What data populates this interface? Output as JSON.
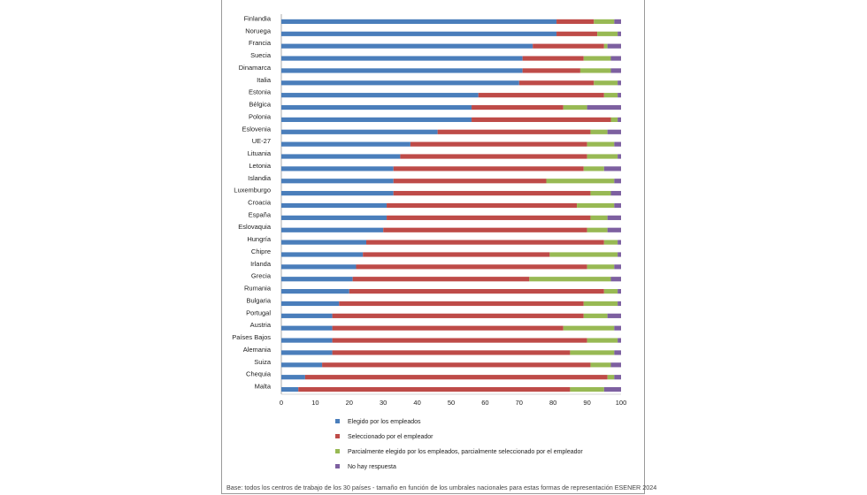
{
  "chart_data": {
    "type": "bar",
    "orientation": "horizontal",
    "stacked": true,
    "categories": [
      "Finlandia",
      "Noruega",
      "Francia",
      "Suecia",
      "Dinamarca",
      "Italia",
      "Estonia",
      "Bélgica",
      "Polonia",
      "Eslovenia",
      "UE-27",
      "Lituania",
      "Letonia",
      "Islandia",
      "Luxemburgo",
      "Croacia",
      "España",
      "Eslovaquia",
      "Hungría",
      "Chipre",
      "Irlanda",
      "Grecia",
      "Rumania",
      "Bulgaria",
      "Portugal",
      "Austria",
      "Países Bajos",
      "Alemania",
      "Suiza",
      "Chequia",
      "Malta"
    ],
    "series": [
      {
        "name": "Elegido por los empleados",
        "color": "#4a7ebb",
        "values": [
          81,
          81,
          74,
          71,
          71,
          70,
          58,
          56,
          56,
          46,
          38,
          35,
          33,
          33,
          33,
          31,
          31,
          30,
          25,
          24,
          22,
          21,
          20,
          17,
          15,
          15,
          15,
          15,
          12,
          7,
          5
        ]
      },
      {
        "name": "Seleccionado por el empleador",
        "color": "#be4b48",
        "values": [
          11,
          12,
          21,
          18,
          17,
          22,
          37,
          27,
          41,
          45,
          52,
          55,
          56,
          45,
          58,
          56,
          60,
          60,
          70,
          55,
          68,
          52,
          75,
          72,
          74,
          68,
          75,
          70,
          79,
          89,
          80
        ]
      },
      {
        "name": "Parcialmente elegido por los empleados, parcialmente seleccionado por el empleador",
        "color": "#98b954",
        "values": [
          6,
          6,
          1,
          8,
          9,
          7,
          4,
          7,
          2,
          5,
          8,
          9,
          6,
          20,
          6,
          11,
          5,
          6,
          4,
          20,
          8,
          24,
          4,
          10,
          7,
          15,
          9,
          13,
          6,
          2,
          10
        ]
      },
      {
        "name": "No hay respuesta",
        "color": "#7d60a0",
        "values": [
          2,
          1,
          4,
          3,
          3,
          1,
          1,
          10,
          1,
          4,
          2,
          1,
          5,
          2,
          3,
          2,
          4,
          4,
          1,
          1,
          2,
          3,
          1,
          1,
          4,
          2,
          1,
          2,
          3,
          2,
          5
        ]
      }
    ],
    "xlim": [
      0,
      100
    ],
    "xticks": [
      0,
      10,
      20,
      30,
      40,
      50,
      60,
      70,
      80,
      90,
      100
    ],
    "legend_position": "bottom",
    "title": "",
    "xlabel": "",
    "ylabel": ""
  },
  "footnote": "Base: todos los  centros de trabajo de los 30 países - tamaño en función de los umbrales nacionales para estas formas de representación ESENER  2024"
}
